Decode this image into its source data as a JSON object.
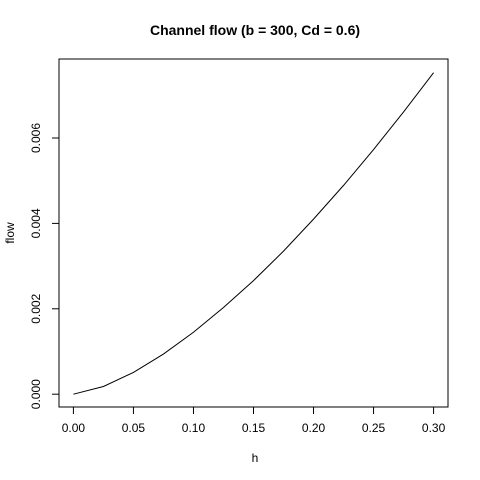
{
  "chart_data": {
    "type": "line",
    "title": "Channel flow (b = 300, Cd = 0.6)",
    "xlabel": "h",
    "ylabel": "flow",
    "xlim": [
      -0.012,
      0.312
    ],
    "ylim": [
      -0.0003,
      0.00785
    ],
    "xticks": [
      0.0,
      0.05,
      0.1,
      0.15,
      0.2,
      0.25,
      0.3
    ],
    "xtick_labels": [
      "0.00",
      "0.05",
      "0.10",
      "0.15",
      "0.20",
      "0.25",
      "0.30"
    ],
    "yticks": [
      0.0,
      0.002,
      0.004,
      0.006
    ],
    "ytick_labels": [
      "0.000",
      "0.002",
      "0.004",
      "0.006"
    ],
    "grid": false,
    "legend": "none",
    "series": [
      {
        "x": [
          0.0,
          0.025,
          0.05,
          0.075,
          0.1,
          0.125,
          0.15,
          0.175,
          0.2,
          0.225,
          0.25,
          0.275,
          0.3
        ],
        "y": [
          0.0,
          0.00018,
          0.00051,
          0.00094,
          0.00145,
          0.00203,
          0.00266,
          0.00335,
          0.0041,
          0.00489,
          0.00573,
          0.00661,
          0.00753
        ]
      }
    ]
  }
}
